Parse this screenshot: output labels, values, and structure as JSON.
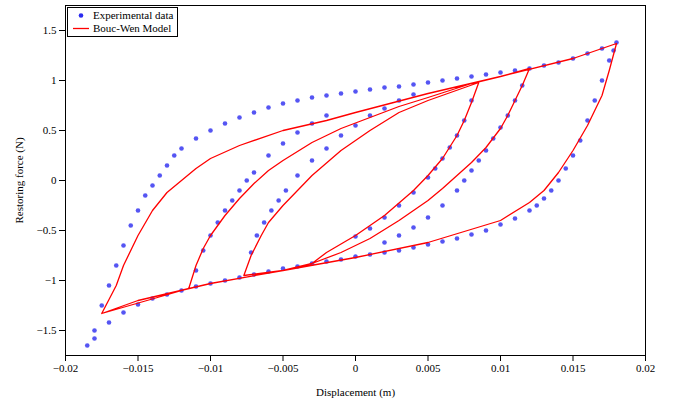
{
  "chart_data": {
    "type": "line",
    "x_label": "Displacement (m)",
    "y_label": "Restoring force (N)",
    "xlim": [
      -0.02,
      0.02
    ],
    "ylim": [
      -1.75,
      1.75
    ],
    "xticks": [
      -0.02,
      -0.015,
      -0.01,
      -0.005,
      0,
      0.005,
      0.01,
      0.015,
      0.02
    ],
    "yticks": [
      -1.5,
      -1,
      -0.5,
      0,
      0.5,
      1,
      1.5
    ],
    "grid": false,
    "legend": "upper left",
    "series": [
      {
        "name": "Experimental data",
        "color": "#2b2bf0",
        "type": "scatter",
        "marker": "circle",
        "x": [
          -0.0185,
          -0.018,
          -0.0175,
          -0.017,
          -0.0165,
          -0.016,
          -0.0155,
          -0.015,
          -0.0145,
          -0.014,
          -0.0135,
          -0.013,
          -0.0125,
          -0.012,
          -0.011,
          -0.01,
          -0.009,
          -0.008,
          -0.007,
          -0.006,
          -0.005,
          -0.004,
          -0.003,
          -0.002,
          -0.001,
          0,
          0.001,
          0.002,
          0.003,
          0.004,
          0.005,
          0.006,
          0.007,
          0.008,
          0.009,
          0.01,
          0.011,
          0.012,
          0.013,
          0.014,
          0.015,
          0.016,
          0.017,
          0.018,
          0.0178,
          0.0175,
          0.017,
          0.0165,
          0.016,
          0.0155,
          0.015,
          0.0145,
          0.014,
          0.0135,
          0.013,
          0.0125,
          0.012,
          0.011,
          0.01,
          0.009,
          0.008,
          0.007,
          0.006,
          0.005,
          0.004,
          0.003,
          0.002,
          0.001,
          0,
          -0.001,
          -0.002,
          -0.003,
          -0.004,
          -0.005,
          -0.006,
          -0.007,
          -0.008,
          -0.009,
          -0.01,
          -0.011,
          -0.012,
          -0.013,
          -0.014,
          -0.015,
          -0.016,
          -0.017,
          -0.018,
          -0.011,
          -0.0105,
          -0.01,
          -0.0095,
          -0.009,
          -0.0085,
          -0.008,
          -0.0075,
          -0.007,
          -0.006,
          -0.005,
          -0.004,
          -0.003,
          -0.002,
          -0.0072,
          -0.0068,
          -0.0063,
          -0.0058,
          -0.0053,
          -0.0048,
          -0.004,
          -0.003,
          -0.002,
          -0.001,
          0,
          0.001,
          0.002,
          0.003,
          0.004,
          0.0115,
          0.011,
          0.0105,
          0.01,
          0.0095,
          0.009,
          0.0085,
          0.008,
          0.0075,
          0.007,
          0.006,
          0.005,
          0.004,
          0.003,
          0.002,
          0.008,
          0.0075,
          0.007,
          0.0065,
          0.006,
          0.0055,
          0.005,
          0.004,
          0.003,
          0.002,
          0.001,
          0
        ],
        "values": [
          -1.65,
          -1.5,
          -1.25,
          -1.05,
          -0.85,
          -0.65,
          -0.45,
          -0.3,
          -0.15,
          -0.05,
          0.05,
          0.15,
          0.25,
          0.32,
          0.42,
          0.5,
          0.57,
          0.63,
          0.68,
          0.73,
          0.77,
          0.8,
          0.83,
          0.85,
          0.87,
          0.89,
          0.91,
          0.93,
          0.94,
          0.96,
          0.98,
          1.0,
          1.02,
          1.04,
          1.06,
          1.08,
          1.1,
          1.12,
          1.15,
          1.18,
          1.22,
          1.27,
          1.32,
          1.38,
          1.3,
          1.2,
          1.0,
          0.8,
          0.6,
          0.4,
          0.25,
          0.12,
          0,
          -0.1,
          -0.18,
          -0.25,
          -0.3,
          -0.38,
          -0.44,
          -0.5,
          -0.54,
          -0.58,
          -0.61,
          -0.64,
          -0.67,
          -0.7,
          -0.72,
          -0.74,
          -0.76,
          -0.79,
          -0.81,
          -0.83,
          -0.86,
          -0.88,
          -0.91,
          -0.94,
          -0.97,
          -1.0,
          -1.03,
          -1.06,
          -1.1,
          -1.14,
          -1.18,
          -1.24,
          -1.32,
          -1.42,
          -1.58,
          -0.9,
          -0.7,
          -0.55,
          -0.42,
          -0.3,
          -0.2,
          -0.1,
          0,
          0.08,
          0.25,
          0.37,
          0.48,
          0.57,
          0.65,
          -0.72,
          -0.55,
          -0.42,
          -0.3,
          -0.2,
          -0.1,
          0.05,
          0.2,
          0.32,
          0.45,
          0.55,
          0.65,
          0.72,
          0.8,
          0.86,
          0.95,
          0.8,
          0.65,
          0.53,
          0.42,
          0.3,
          0.2,
          0.1,
          0,
          -0.1,
          -0.25,
          -0.37,
          -0.47,
          -0.55,
          -0.62,
          0.8,
          0.6,
          0.45,
          0.33,
          0.22,
          0.12,
          0.03,
          -0.12,
          -0.25,
          -0.37,
          -0.48,
          -0.56
        ]
      },
      {
        "name": "Bouc-Wen Model",
        "color": "#ff0000",
        "type": "line",
        "line_style": "solid",
        "x": [
          -0.0175,
          -0.0165,
          -0.016,
          -0.015,
          -0.014,
          -0.013,
          -0.012,
          -0.011,
          -0.01,
          -0.008,
          -0.005,
          -0.002,
          0,
          0.005,
          0.01,
          0.015,
          0.018,
          0.0175,
          0.017,
          0.016,
          0.015,
          0.014,
          0.013,
          0.012,
          0.01,
          0.005,
          0,
          -0.005,
          -0.01,
          -0.015,
          -0.0175,
          -0.0115,
          -0.011,
          -0.0105,
          -0.01,
          -0.009,
          -0.008,
          -0.007,
          -0.006,
          -0.005,
          -0.003,
          -0.001,
          0.001,
          0.003,
          0.005,
          0.008,
          0.01,
          0.012,
          0.0115,
          0.011,
          0.0105,
          0.01,
          0.009,
          0.008,
          0.007,
          0.006,
          0.005,
          0.003,
          0.001,
          -0.001,
          -0.003,
          -0.005,
          -0.0077,
          -0.0072,
          -0.0065,
          -0.006,
          -0.005,
          -0.004,
          -0.003,
          -0.001,
          0.001,
          0.003,
          0.005,
          0.0085,
          0.008,
          0.0075,
          0.007,
          0.006,
          0.005,
          0.004,
          0.002,
          0,
          -0.002,
          -0.003
        ],
        "values": [
          -1.33,
          -1.05,
          -0.85,
          -0.55,
          -0.3,
          -0.12,
          0,
          0.12,
          0.22,
          0.35,
          0.5,
          0.6,
          0.68,
          0.87,
          1.04,
          1.22,
          1.37,
          1.1,
          0.85,
          0.55,
          0.3,
          0.08,
          -0.1,
          -0.22,
          -0.4,
          -0.62,
          -0.77,
          -0.9,
          -1.03,
          -1.2,
          -1.33,
          -1.08,
          -0.85,
          -0.68,
          -0.55,
          -0.35,
          -0.18,
          -0.03,
          0.1,
          0.2,
          0.38,
          0.52,
          0.63,
          0.74,
          0.83,
          0.97,
          1.04,
          1.12,
          0.95,
          0.8,
          0.65,
          0.52,
          0.33,
          0.18,
          0.05,
          -0.08,
          -0.2,
          -0.4,
          -0.58,
          -0.72,
          -0.83,
          -0.9,
          -0.95,
          -0.75,
          -0.55,
          -0.42,
          -0.25,
          -0.1,
          0.05,
          0.3,
          0.5,
          0.68,
          0.8,
          0.98,
          0.78,
          0.6,
          0.45,
          0.22,
          0.05,
          -0.1,
          -0.35,
          -0.55,
          -0.72,
          -0.83
        ]
      }
    ]
  }
}
